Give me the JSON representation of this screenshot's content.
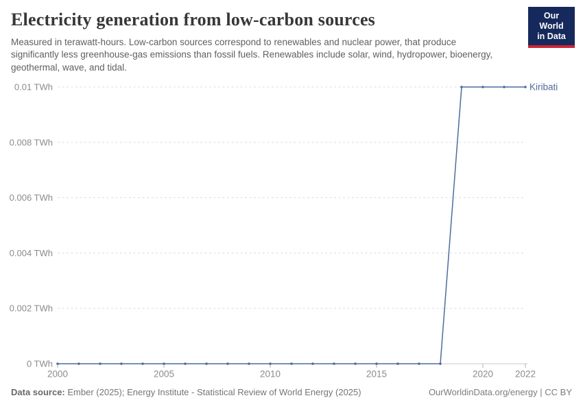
{
  "header": {
    "title": "Electricity generation from low-carbon sources",
    "subtitle": "Measured in terawatt-hours. Low-carbon sources correspond to renewables and nuclear power, that produce significantly less greenhouse-gas emissions than fossil fuels. Renewables include solar, wind, hydropower, bioenergy, geothermal, wave, and tidal.",
    "logo": {
      "line1": "Our World",
      "line2": "in Data",
      "bg_color": "#16295c",
      "accent_color": "#cd2434",
      "text_color": "#ffffff"
    }
  },
  "chart_data": {
    "type": "line",
    "title": "Electricity generation from low-carbon sources",
    "unit": "TWh",
    "x": [
      2000,
      2001,
      2002,
      2003,
      2004,
      2005,
      2006,
      2007,
      2008,
      2009,
      2010,
      2011,
      2012,
      2013,
      2014,
      2015,
      2016,
      2017,
      2018,
      2019,
      2020,
      2021,
      2022
    ],
    "series": [
      {
        "name": "Kiribati",
        "color": "#4c6a9c",
        "values": [
          0,
          0,
          0,
          0,
          0,
          0,
          0,
          0,
          0,
          0,
          0,
          0,
          0,
          0,
          0,
          0,
          0,
          0,
          0,
          0.01,
          0.01,
          0.01,
          0.01
        ]
      }
    ],
    "x_ticks": [
      2000,
      2005,
      2010,
      2015,
      2020,
      2022
    ],
    "y_ticks": [
      0,
      0.002,
      0.004,
      0.006,
      0.008,
      0.01
    ],
    "y_tick_labels": [
      "0 TWh",
      "0.002 TWh",
      "0.004 TWh",
      "0.006 TWh",
      "0.008 TWh",
      "0.01 TWh"
    ],
    "xlim": [
      2000,
      2022
    ],
    "ylim": [
      0,
      0.01
    ],
    "grid": "horizontal-dashed",
    "legend_position": "end-of-line-label",
    "colors": {
      "gridline": "#dcdcdc",
      "axis_line": "#c8c8c8",
      "tick_mark": "#b4b4b4",
      "tick_label": "#8b8b8b"
    }
  },
  "footer": {
    "source_label": "Data source:",
    "source_text": "Ember (2025); Energy Institute - Statistical Review of World Energy (2025)",
    "credit": "OurWorldinData.org/energy | CC BY"
  }
}
